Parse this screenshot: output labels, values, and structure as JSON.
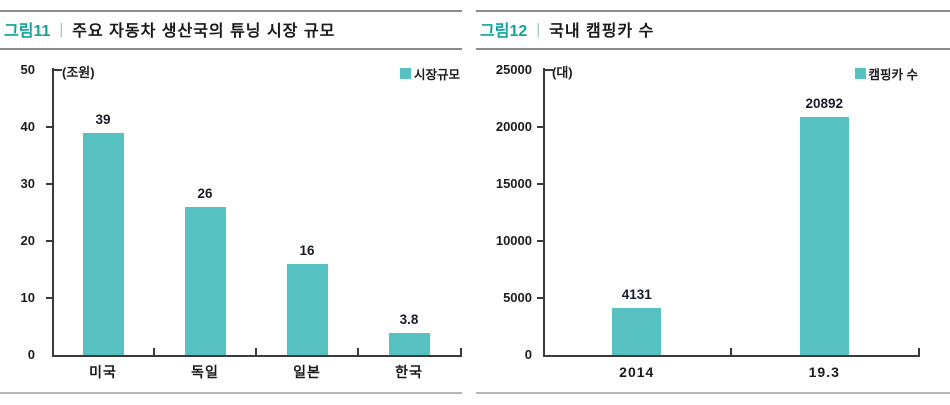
{
  "figures": [
    {
      "label": "그림11",
      "separator": "|",
      "title": "주요 자동차 생산국의 튜닝 시장 규모",
      "legend": "시장규모",
      "unit": "(조원)"
    },
    {
      "label": "그림12",
      "separator": "|",
      "title": "국내 캠핑카 수",
      "legend": "캠핑카 수",
      "unit": "(대)"
    }
  ],
  "chart_data": [
    {
      "type": "bar",
      "title": "주요 자동차 생산국의 튜닝 시장 규모",
      "ylabel_unit": "(조원)",
      "legend_entries": [
        "시장규모"
      ],
      "legend_position": "top-right",
      "categories": [
        "미국",
        "독일",
        "일본",
        "한국"
      ],
      "values": [
        39,
        26,
        16,
        3.8
      ],
      "value_labels": [
        "39",
        "26",
        "16",
        "3.8"
      ],
      "ylim": [
        0,
        50
      ],
      "yticks": [
        0,
        10,
        20,
        30,
        40,
        50
      ],
      "grid": false,
      "bar_color": "#57c1c1"
    },
    {
      "type": "bar",
      "title": "국내 캠핑카 수",
      "ylabel_unit": "(대)",
      "legend_entries": [
        "캠핑카 수"
      ],
      "legend_position": "top-right",
      "categories": [
        "2014",
        "19.3"
      ],
      "values": [
        4131,
        20892
      ],
      "value_labels": [
        "4131",
        "20892"
      ],
      "ylim": [
        0,
        25000
      ],
      "yticks": [
        0,
        5000,
        10000,
        15000,
        20000,
        25000
      ],
      "grid": false,
      "bar_color": "#57c1c1"
    }
  ],
  "colors": {
    "accent_teal": "#0fa39d",
    "bar_teal": "#57c1c1",
    "rule_gray": "#8c8c8c",
    "rule_light": "#b5b5b5",
    "axis": "#3a3a3a",
    "text": "#1c1c1c"
  }
}
